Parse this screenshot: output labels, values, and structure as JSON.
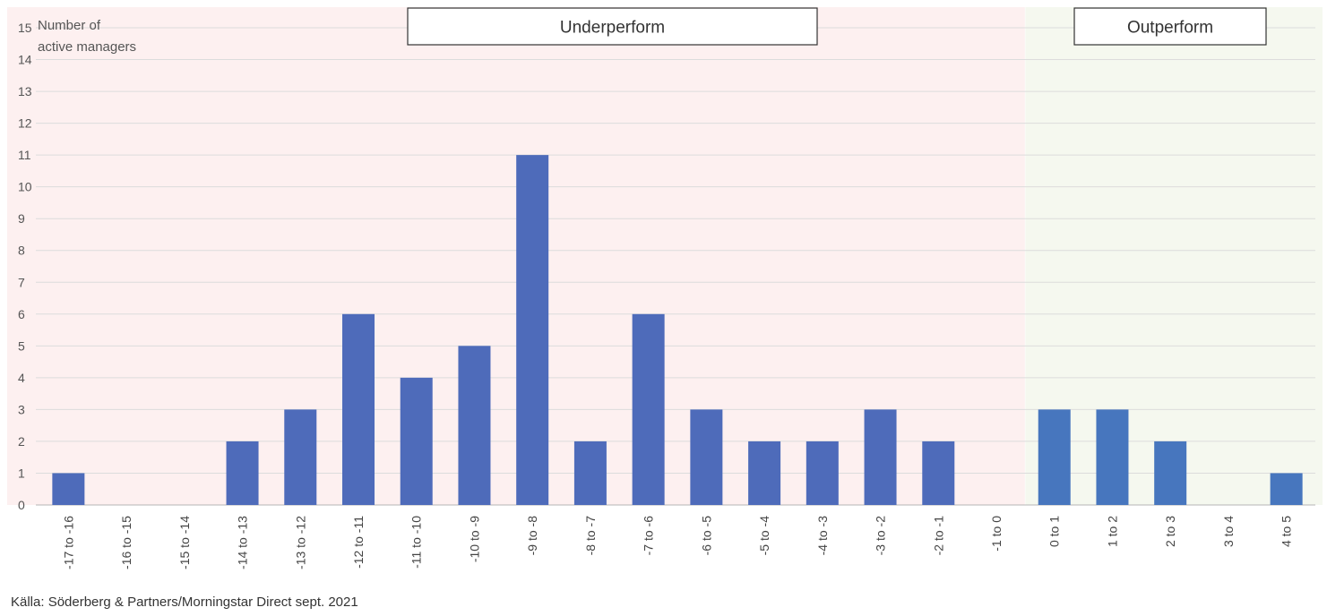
{
  "chart_data": {
    "type": "bar",
    "ylabel_lines": [
      "Number of",
      "active managers"
    ],
    "ylim": [
      0,
      15
    ],
    "yticks": [
      0,
      1,
      2,
      3,
      4,
      5,
      6,
      7,
      8,
      9,
      10,
      11,
      12,
      13,
      14,
      15
    ],
    "grid": true,
    "categories": [
      "-17 to -16",
      "-16 to -15",
      "-15 to -14",
      "-14 to -13",
      "-13 to -12",
      "-12 to -11",
      "-11 to -10",
      "-10 to -9",
      "-9 to -8",
      "-8 to -7",
      "-7 to -6",
      "-6 to -5",
      "-5 to -4",
      "-4 to -3",
      "-3 to -2",
      "-2 to -1",
      "-1 to 0",
      "0 to 1",
      "1 to 2",
      "2 to 3",
      "3 to 4",
      "4 to 5"
    ],
    "values": [
      1,
      0,
      0,
      2,
      3,
      6,
      4,
      5,
      11,
      2,
      6,
      3,
      2,
      2,
      3,
      2,
      0,
      3,
      3,
      2,
      0,
      1
    ],
    "zones": [
      {
        "label": "Underperform",
        "from_index": 0,
        "to_index": 16,
        "background": "#fdf0f0",
        "bar_color": "#4e6bba"
      },
      {
        "label": "Outperform",
        "from_index": 17,
        "to_index": 21,
        "background": "#f5f8ef",
        "bar_color": "#4776be"
      }
    ],
    "source": "Källa: Söderberg & Partners/Morningstar Direct sept. 2021"
  }
}
